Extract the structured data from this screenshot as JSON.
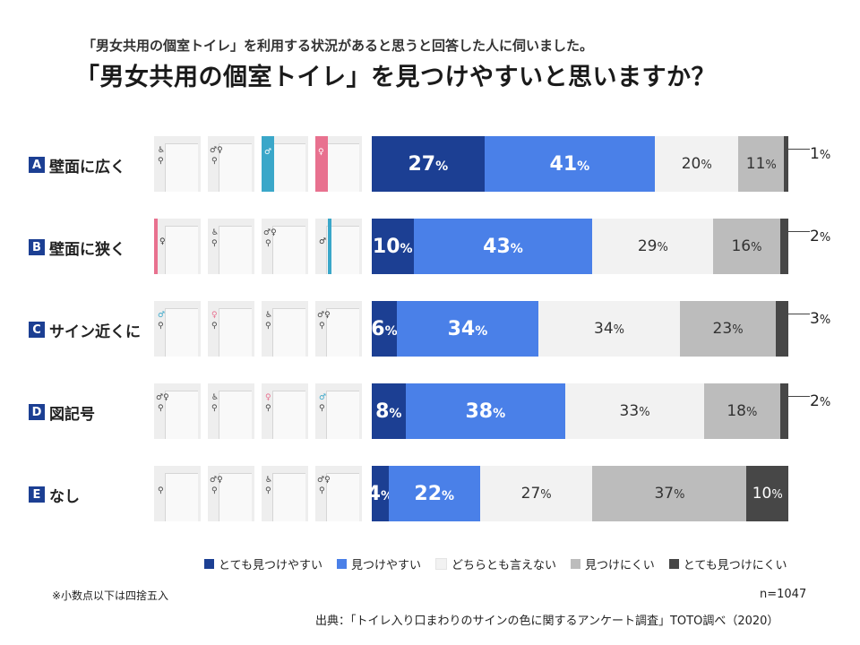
{
  "header": {
    "subtitle": "「男女共用の個室トイレ」を利用する状況があると思うと回答した人に伺いました。",
    "title": "「男女共用の個室トイレ」を見つけやすいと思いますか？"
  },
  "colors": {
    "very_easy": "#1c3f93",
    "easy": "#4a80e8",
    "neutral": "#f2f2f2",
    "hard": "#bcbcbc",
    "very_hard": "#474747",
    "label_box": "#1c3f93",
    "strip_blue": "#3aa7c9",
    "strip_pink": "#e8718f"
  },
  "chart_data": {
    "type": "bar",
    "orientation": "horizontal",
    "stacked": true,
    "unit": "%",
    "categories": [
      "A 壁面に広く",
      "B 壁面に狭く",
      "C サイン近くに",
      "D 図記号",
      "E なし"
    ],
    "series": [
      {
        "name": "とても見つけやすい",
        "values": [
          27,
          10,
          6,
          8,
          4
        ]
      },
      {
        "name": "見つけやすい",
        "values": [
          41,
          43,
          34,
          38,
          22
        ]
      },
      {
        "name": "どちらとも言えない",
        "values": [
          20,
          29,
          34,
          33,
          27
        ]
      },
      {
        "name": "見つけにくい",
        "values": [
          11,
          16,
          23,
          18,
          37
        ]
      },
      {
        "name": "とても見つけにくい",
        "values": [
          1,
          2,
          3,
          2,
          10
        ]
      }
    ],
    "xlim": [
      0,
      100
    ],
    "legend": "bottom",
    "grid": false
  },
  "rows": [
    {
      "letter": "A",
      "label": "壁面に広く",
      "thumbs": [
        "wheelchair-sign",
        "toilet-signs",
        "blue-strip",
        "pink-strip"
      ]
    },
    {
      "letter": "B",
      "label": "壁面に狭く",
      "thumbs": [
        "pink-line",
        "wheelchair-sign",
        "toilet-signs",
        "blue-line"
      ]
    },
    {
      "letter": "C",
      "label": "サイン近くに",
      "thumbs": [
        "blue-sign",
        "pink-sign",
        "wheelchair-sign",
        "toilet-signs"
      ]
    },
    {
      "letter": "D",
      "label": "図記号",
      "thumbs": [
        "toilet-signs",
        "wheelchair-sign",
        "pink-sign",
        "blue-sign"
      ]
    },
    {
      "letter": "E",
      "label": "なし",
      "thumbs": [
        "plain-sign",
        "toilet-signs",
        "wheelchair-sign",
        "toilet-signs"
      ]
    }
  ],
  "footer": {
    "note": "※小数点以下は四捨五入",
    "n": "n=1047",
    "source": "出典：「トイレ入り口まわりのサインの色に関するアンケート調査」TOTO調べ（2020）"
  }
}
